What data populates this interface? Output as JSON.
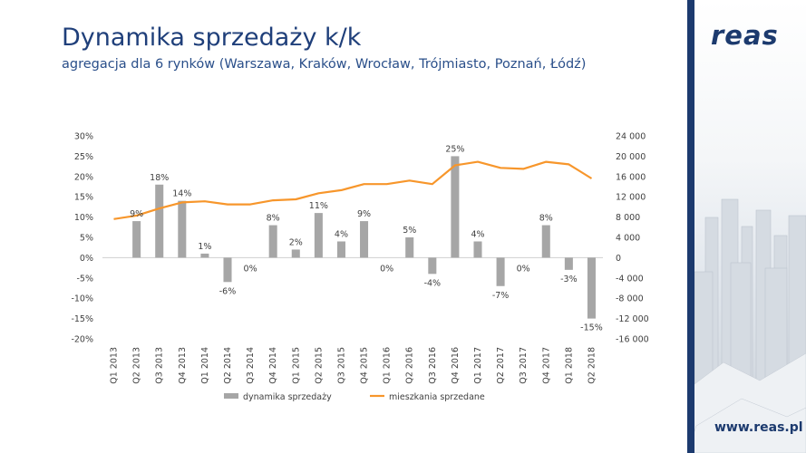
{
  "title": "Dynamika sprzedaży k/k",
  "subtitle": "agregacja dla 6 rynków (Warszawa, Kraków, Wrocław, Trójmiasto, Poznań, Łódź)",
  "brand": {
    "logo": "reas",
    "url": "www.reas.pl"
  },
  "colors": {
    "bar": "#a6a6a6",
    "line": "#f7962b",
    "title": "#1f3f7a",
    "brand": "#1c3a6e"
  },
  "chart_data": {
    "type": "bar+line",
    "categories": [
      "Q1 2013",
      "Q2 2013",
      "Q3 2013",
      "Q4 2013",
      "Q1 2014",
      "Q2 2014",
      "Q3 2014",
      "Q4 2014",
      "Q1 2015",
      "Q2 2015",
      "Q3 2015",
      "Q4 2015",
      "Q1 2016",
      "Q2 2016",
      "Q3 2016",
      "Q4 2016",
      "Q1 2017",
      "Q2 2017",
      "Q3 2017",
      "Q4 2017",
      "Q1 2018",
      "Q2 2018"
    ],
    "series": [
      {
        "name": "dynamika sprzedaży",
        "type": "bar",
        "axis": "left",
        "values": [
          null,
          9,
          18,
          14,
          1,
          -6,
          0,
          8,
          2,
          11,
          4,
          9,
          0,
          5,
          -4,
          25,
          4,
          -7,
          0,
          8,
          -3,
          -15
        ],
        "labels": [
          "",
          "9%",
          "18%",
          "14%",
          "1%",
          "-6%",
          "0%",
          "8%",
          "2%",
          "11%",
          "4%",
          "9%",
          "0%",
          "5%",
          "-4%",
          "25%",
          "4%",
          "-7%",
          "0%",
          "8%",
          "-3%",
          "-15%"
        ]
      },
      {
        "name": "mieszkania sprzedane",
        "type": "line",
        "axis": "right",
        "values": [
          7600,
          8300,
          9700,
          10900,
          11100,
          10500,
          10500,
          11300,
          11500,
          12700,
          13300,
          14500,
          14500,
          15200,
          14500,
          18200,
          18900,
          17700,
          17500,
          18900,
          18400,
          15600
        ]
      }
    ],
    "y_left": {
      "min": -20,
      "max": 30,
      "step": 5,
      "tick_labels": [
        "30%",
        "25%",
        "20%",
        "15%",
        "10%",
        "5%",
        "0%",
        "-5%",
        "-10%",
        "-15%",
        "-20%"
      ]
    },
    "y_right": {
      "min": -16000,
      "max": 24000,
      "step": 4000,
      "tick_labels": [
        "24 000",
        "20 000",
        "16 000",
        "12 000",
        "8 000",
        "4 000",
        "0",
        "-4 000",
        "-8 000",
        "-12 000",
        "-16 000"
      ]
    },
    "legend": {
      "position": "bottom",
      "entries": [
        "dynamika sprzedaży",
        "mieszkania sprzedane"
      ]
    },
    "grid": false
  }
}
